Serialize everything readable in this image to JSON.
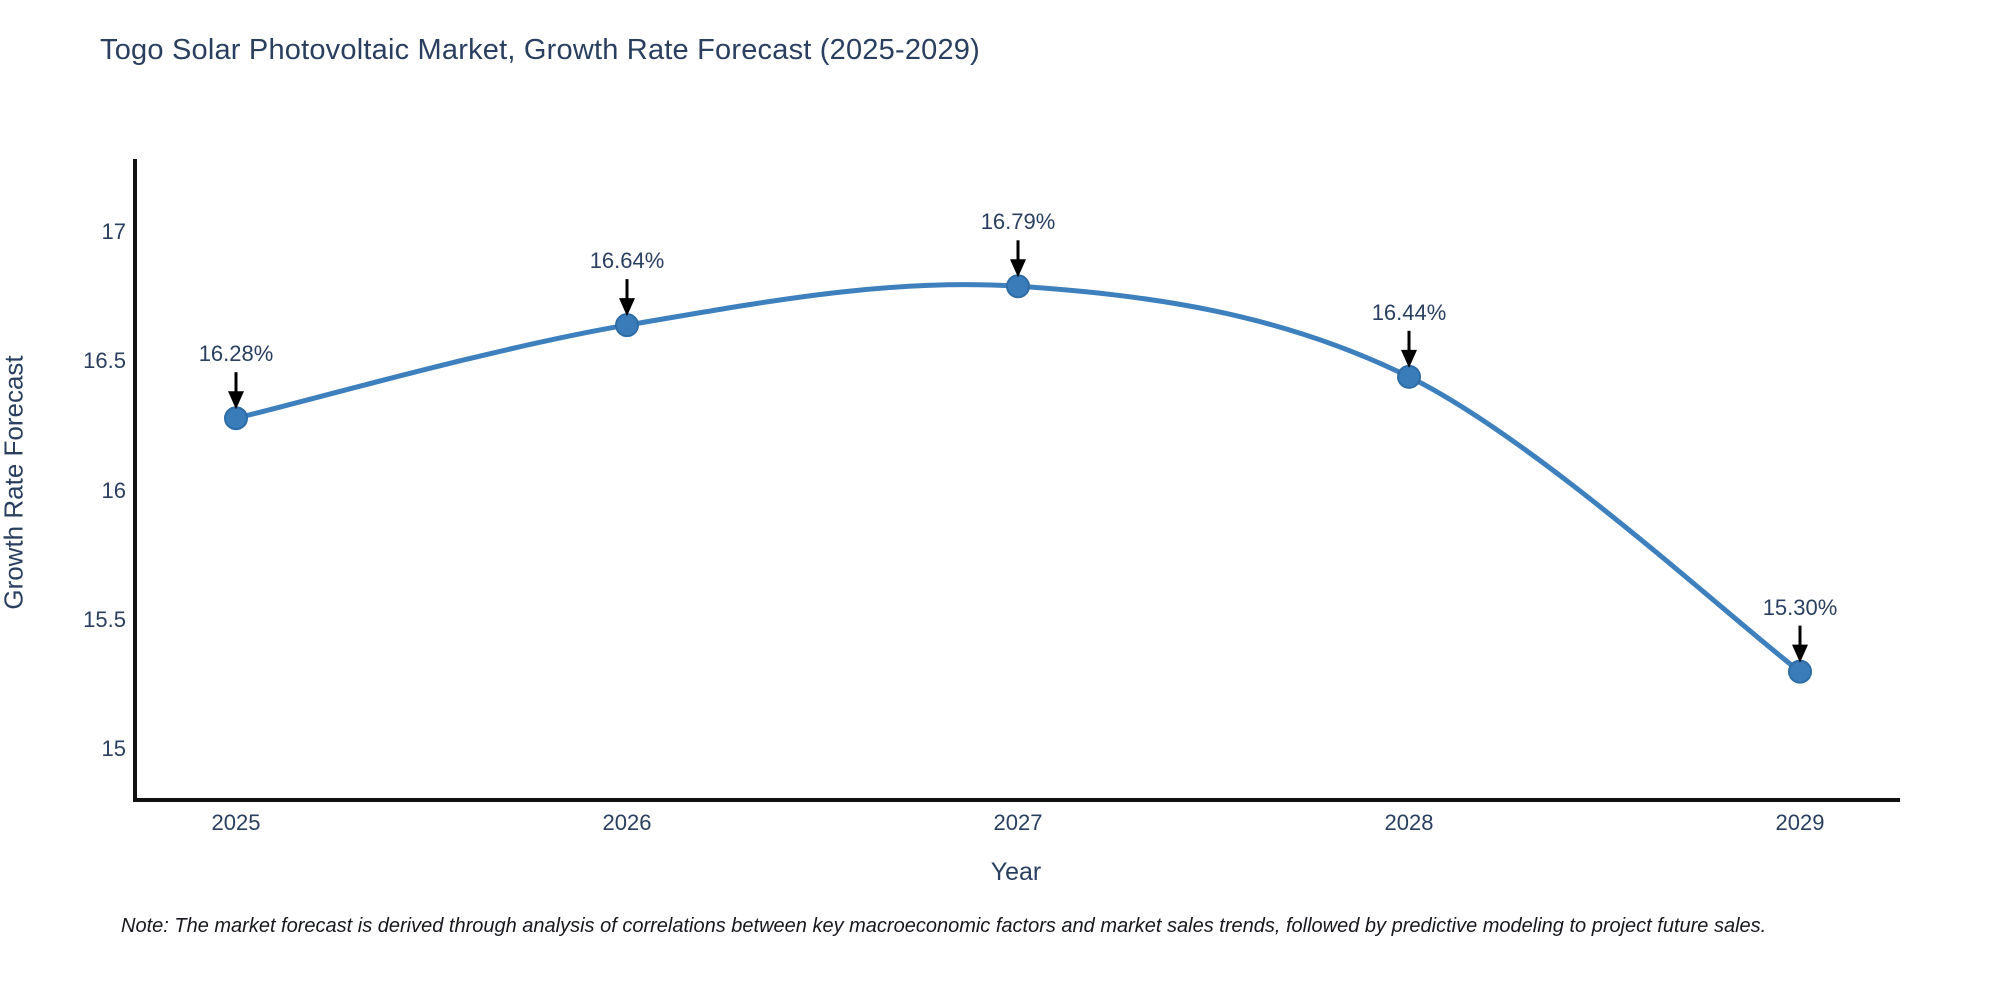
{
  "page": {
    "title": "Togo Solar Photovoltaic Market, Growth Rate Forecast (2025-2029)",
    "note": "Note: The market forecast is derived through analysis of correlations between key macroeconomic factors and market sales trends, followed by predictive modeling to project future sales."
  },
  "chart_data": {
    "type": "line",
    "title": "Togo Solar Photovoltaic Market, Growth Rate Forecast (2025-2029)",
    "categories": [
      2025,
      2026,
      2027,
      2028,
      2029
    ],
    "values": [
      16.28,
      16.64,
      16.79,
      16.44,
      15.3
    ],
    "point_labels": [
      "16.28%",
      "16.64%",
      "16.79%",
      "16.44%",
      "15.30%"
    ],
    "xlabel": "Year",
    "ylabel": "Growth Rate Forecast",
    "xticks": [
      "2025",
      "2026",
      "2027",
      "2028",
      "2029"
    ],
    "yticks": [
      17,
      16.5,
      16,
      15.5,
      15
    ],
    "ytick_labels": [
      "17",
      "16.5",
      "16",
      "15.5",
      "15"
    ],
    "xlim": [
      2024.74,
      2029.26
    ],
    "ylim": [
      14.8,
      17.28
    ],
    "grid": false,
    "legend": "none",
    "line_shape": "spline",
    "annotation_arrows": "black, pointing down at each marker",
    "colors": {
      "line": "#3e80bd",
      "marker_fill": "#3a7cba",
      "marker_stroke": "#2e6ca5",
      "axis_line": "#111111",
      "text": "#2a3f5f",
      "arrow": "#000000",
      "background": "#ffffff"
    }
  }
}
